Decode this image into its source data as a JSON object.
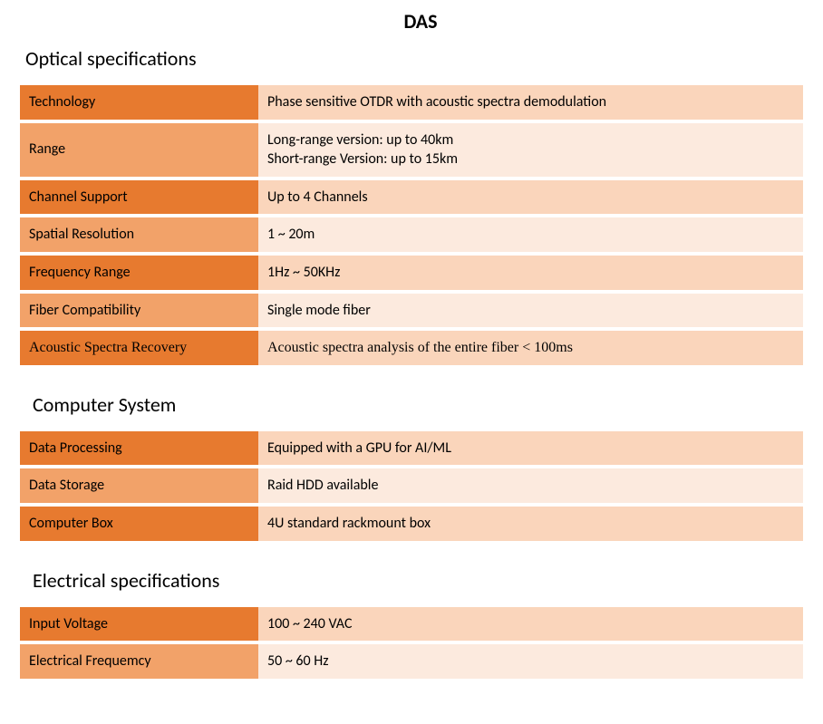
{
  "title": "DAS",
  "colors": {
    "label_dark": "#e77a2f",
    "label_light": "#f2a269",
    "value_dark": "#fad5bb",
    "value_light": "#fceade",
    "text": "#000000",
    "serif_rows": [
      "optical-6"
    ]
  },
  "sections": [
    {
      "id": "optical",
      "title": "Optical specifications",
      "indent": false,
      "rows": [
        {
          "label": "Technology",
          "value": "Phase sensitive OTDR with acoustic spectra demodulation"
        },
        {
          "label": "Range",
          "value": "Long-range version: up to 40km\nShort-range Version: up to 15km"
        },
        {
          "label": "Channel Support",
          "value": "Up to 4 Channels"
        },
        {
          "label": "Spatial Resolution",
          "value": "1 ~ 20m"
        },
        {
          "label": "Frequency Range",
          "value": "1Hz ~ 50KHz"
        },
        {
          "label": "Fiber Compatibility",
          "value": "Single mode fiber"
        },
        {
          "label": "Acoustic Spectra Recovery",
          "value": "Acoustic spectra analysis of the entire fiber < 100ms"
        }
      ]
    },
    {
      "id": "computer",
      "title": "Computer System",
      "indent": true,
      "rows": [
        {
          "label": "Data Processing",
          "value": "Equipped with a GPU for AI/ML"
        },
        {
          "label": "Data Storage",
          "value": "Raid HDD available"
        },
        {
          "label": "Computer Box",
          "value": "4U standard rackmount box"
        }
      ]
    },
    {
      "id": "electrical",
      "title": "Electrical specifications",
      "indent": true,
      "rows": [
        {
          "label": "Input Voltage",
          "value": "100 ~ 240 VAC"
        },
        {
          "label": "Electrical Frequemcy",
          "value": "50 ~ 60 Hz"
        }
      ]
    }
  ]
}
